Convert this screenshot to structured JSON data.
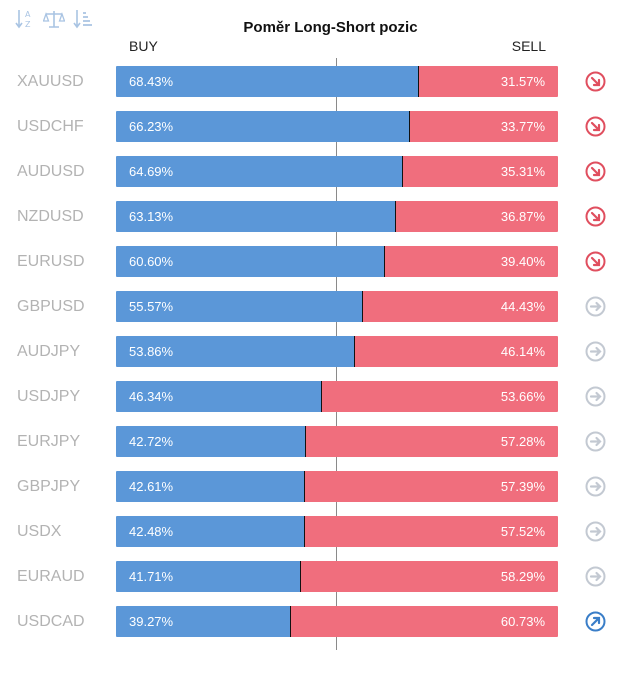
{
  "title": "Poměr Long-Short pozic",
  "columns": {
    "buy": "BUY",
    "sell": "SELL"
  },
  "toolbar": [
    {
      "name": "sort-alpha-icon"
    },
    {
      "name": "balance-scale-icon"
    },
    {
      "name": "sort-amount-icon"
    }
  ],
  "colors": {
    "buy": "#5b97d8",
    "sell": "#f06e7d",
    "trend_down": "#e04f5f",
    "trend_neutral": "#c3c9d2",
    "trend_up": "#3a7ec8"
  },
  "chart_data": {
    "type": "bar",
    "title": "Poměr Long-Short pozic",
    "categories": [
      "XAUUSD",
      "USDCHF",
      "AUDUSD",
      "NZDUSD",
      "EURUSD",
      "GBPUSD",
      "AUDJPY",
      "USDJPY",
      "EURJPY",
      "GBPJPY",
      "USDX",
      "EURAUD",
      "USDCAD"
    ],
    "series": [
      {
        "name": "BUY",
        "values": [
          68.43,
          66.23,
          64.69,
          63.13,
          60.6,
          55.57,
          53.86,
          46.34,
          42.72,
          42.61,
          42.48,
          41.71,
          39.27
        ]
      },
      {
        "name": "SELL",
        "values": [
          31.57,
          33.77,
          35.31,
          36.87,
          39.4,
          44.43,
          46.14,
          53.66,
          57.28,
          57.39,
          57.52,
          58.29,
          60.73
        ]
      }
    ],
    "ylim": [
      0,
      100
    ],
    "stacked": true
  },
  "rows": [
    {
      "pair": "XAUUSD",
      "buy": 68.43,
      "buy_label": "68.43%",
      "sell_label": "31.57%",
      "trend": "down"
    },
    {
      "pair": "USDCHF",
      "buy": 66.23,
      "buy_label": "66.23%",
      "sell_label": "33.77%",
      "trend": "down"
    },
    {
      "pair": "AUDUSD",
      "buy": 64.69,
      "buy_label": "64.69%",
      "sell_label": "35.31%",
      "trend": "down"
    },
    {
      "pair": "NZDUSD",
      "buy": 63.13,
      "buy_label": "63.13%",
      "sell_label": "36.87%",
      "trend": "down"
    },
    {
      "pair": "EURUSD",
      "buy": 60.6,
      "buy_label": "60.60%",
      "sell_label": "39.40%",
      "trend": "down"
    },
    {
      "pair": "GBPUSD",
      "buy": 55.57,
      "buy_label": "55.57%",
      "sell_label": "44.43%",
      "trend": "neutral"
    },
    {
      "pair": "AUDJPY",
      "buy": 53.86,
      "buy_label": "53.86%",
      "sell_label": "46.14%",
      "trend": "neutral"
    },
    {
      "pair": "USDJPY",
      "buy": 46.34,
      "buy_label": "46.34%",
      "sell_label": "53.66%",
      "trend": "neutral"
    },
    {
      "pair": "EURJPY",
      "buy": 42.72,
      "buy_label": "42.72%",
      "sell_label": "57.28%",
      "trend": "neutral"
    },
    {
      "pair": "GBPJPY",
      "buy": 42.61,
      "buy_label": "42.61%",
      "sell_label": "57.39%",
      "trend": "neutral"
    },
    {
      "pair": "USDX",
      "buy": 42.48,
      "buy_label": "42.48%",
      "sell_label": "57.52%",
      "trend": "neutral"
    },
    {
      "pair": "EURAUD",
      "buy": 41.71,
      "buy_label": "41.71%",
      "sell_label": "58.29%",
      "trend": "neutral"
    },
    {
      "pair": "USDCAD",
      "buy": 39.27,
      "buy_label": "39.27%",
      "sell_label": "60.73%",
      "trend": "up"
    }
  ]
}
